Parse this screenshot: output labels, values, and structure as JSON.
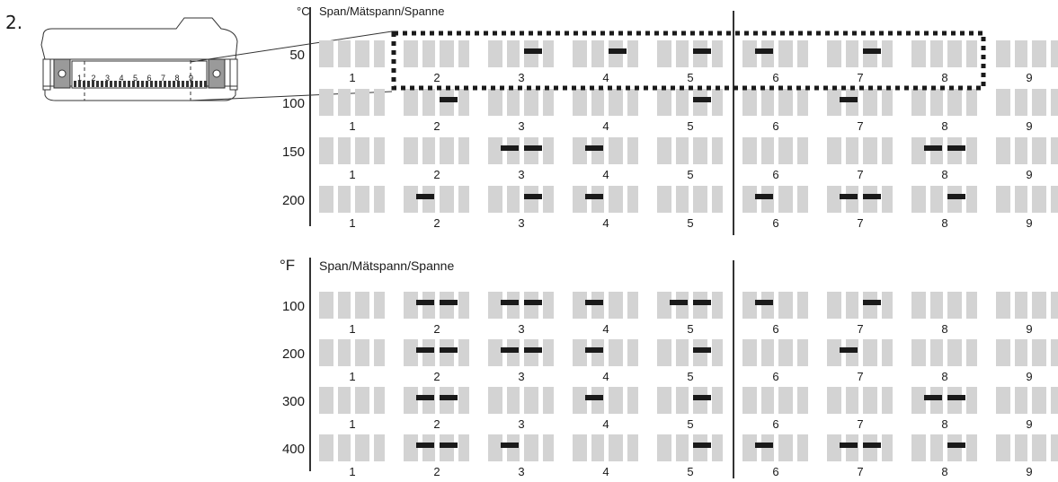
{
  "step_label": "2.",
  "connector": {
    "pin_numbers": [
      "1",
      "2",
      "3",
      "4",
      "5",
      "6",
      "7",
      "8",
      "9"
    ]
  },
  "switch_numbers": [
    "1",
    "2",
    "3",
    "4",
    "5",
    "6",
    "7",
    "8",
    "9"
  ],
  "celsius": {
    "unit": "°C",
    "header": "Span/Mätspann/Spanne",
    "rows": [
      {
        "value": "50",
        "switches": [
          [
            0,
            0
          ],
          [
            0,
            0
          ],
          [
            0,
            1
          ],
          [
            0,
            1
          ],
          [
            0,
            1
          ],
          [
            1,
            0
          ],
          [
            0,
            1
          ],
          [
            0,
            0
          ],
          [
            0,
            0
          ]
        ],
        "highlighted": true
      },
      {
        "value": "100",
        "switches": [
          [
            0,
            0
          ],
          [
            0,
            1
          ],
          [
            0,
            0
          ],
          [
            0,
            0
          ],
          [
            0,
            1
          ],
          [
            0,
            0
          ],
          [
            1,
            0
          ],
          [
            0,
            0
          ],
          [
            0,
            0
          ]
        ]
      },
      {
        "value": "150",
        "switches": [
          [
            0,
            0
          ],
          [
            0,
            0
          ],
          [
            1,
            1
          ],
          [
            1,
            0
          ],
          [
            0,
            0
          ],
          [
            0,
            0
          ],
          [
            0,
            0
          ],
          [
            1,
            1
          ],
          [
            0,
            0
          ]
        ]
      },
      {
        "value": "200",
        "switches": [
          [
            0,
            0
          ],
          [
            1,
            0
          ],
          [
            0,
            1
          ],
          [
            1,
            0
          ],
          [
            0,
            0
          ],
          [
            1,
            0
          ],
          [
            1,
            1
          ],
          [
            0,
            1
          ],
          [
            0,
            0
          ]
        ]
      }
    ]
  },
  "fahrenheit": {
    "unit": "°F",
    "header": "Span/Mätspann/Spanne",
    "rows": [
      {
        "value": "100",
        "switches": [
          [
            0,
            0
          ],
          [
            1,
            1
          ],
          [
            1,
            1
          ],
          [
            1,
            0
          ],
          [
            1,
            1
          ],
          [
            1,
            0
          ],
          [
            0,
            1
          ],
          [
            0,
            0
          ],
          [
            0,
            0
          ]
        ]
      },
      {
        "value": "200",
        "switches": [
          [
            0,
            0
          ],
          [
            1,
            1
          ],
          [
            1,
            1
          ],
          [
            1,
            0
          ],
          [
            0,
            1
          ],
          [
            0,
            0
          ],
          [
            1,
            0
          ],
          [
            0,
            0
          ],
          [
            0,
            0
          ]
        ]
      },
      {
        "value": "300",
        "switches": [
          [
            0,
            0
          ],
          [
            1,
            1
          ],
          [
            0,
            0
          ],
          [
            1,
            0
          ],
          [
            0,
            1
          ],
          [
            0,
            0
          ],
          [
            0,
            0
          ],
          [
            1,
            1
          ],
          [
            0,
            0
          ]
        ]
      },
      {
        "value": "400",
        "switches": [
          [
            0,
            0
          ],
          [
            1,
            1
          ],
          [
            1,
            0
          ],
          [
            0,
            0
          ],
          [
            0,
            1
          ],
          [
            1,
            0
          ],
          [
            1,
            1
          ],
          [
            0,
            1
          ],
          [
            0,
            0
          ]
        ]
      }
    ]
  },
  "colors": {
    "switch_off": "#d3d3d3",
    "switch_on": "#1a1a1a",
    "line": "#333333",
    "highlight_border": "#1a1a1a"
  }
}
